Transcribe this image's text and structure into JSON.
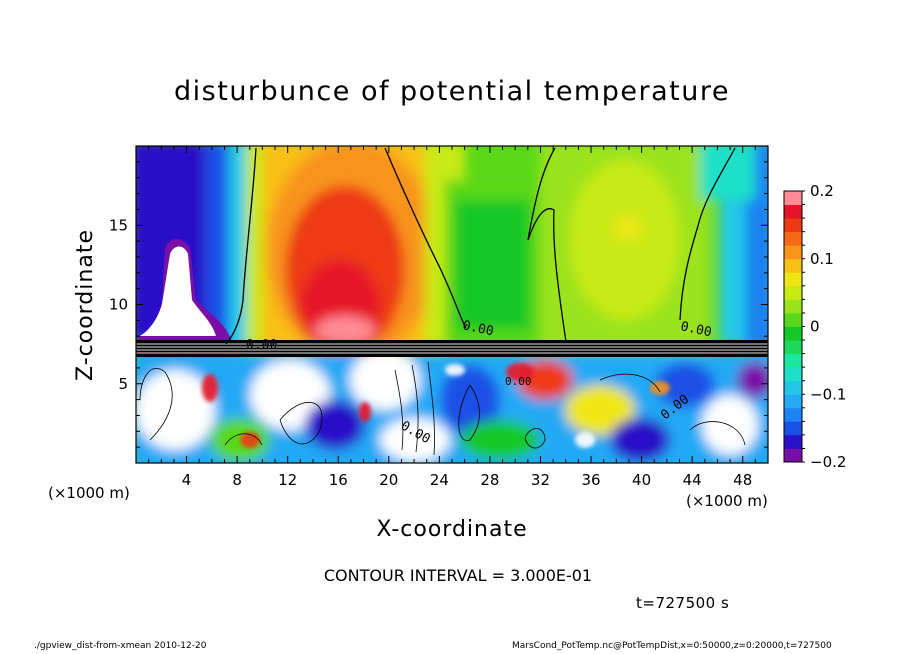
{
  "chart_data": {
    "type": "heatmap",
    "title": "disturbunce of potential temperature",
    "xlabel": "X-coordinate",
    "ylabel": "Z-coordinate",
    "x_unit_left": "(×1000 m)",
    "x_unit_right": "(×1000 m)",
    "xlim": [
      0,
      50
    ],
    "ylim": [
      0,
      20
    ],
    "xticks": [
      4,
      8,
      12,
      16,
      20,
      24,
      28,
      32,
      36,
      40,
      44,
      48
    ],
    "yticks": [
      5,
      10,
      15
    ],
    "colorbar": {
      "range": [
        -0.2,
        0.2
      ],
      "tick_labels": [
        "0.2",
        "0.1",
        "0",
        "−0.1",
        "−0.2"
      ],
      "tick_values": [
        0.2,
        0.1,
        0,
        -0.1,
        -0.2
      ],
      "levels": [
        -0.2,
        -0.18,
        -0.16,
        -0.14,
        -0.12,
        -0.1,
        -0.08,
        -0.06,
        -0.04,
        -0.02,
        0,
        0.02,
        0.04,
        0.06,
        0.08,
        0.1,
        0.12,
        0.14,
        0.16,
        0.18,
        0.2
      ],
      "colors": [
        "#7a0fa8",
        "#2b10c8",
        "#1a4fe6",
        "#1f82f2",
        "#23a9f5",
        "#23c8e8",
        "#1ee0c8",
        "#18e8a0",
        "#1ed85c",
        "#14c828",
        "#58d81a",
        "#9be31a",
        "#c8ea14",
        "#f0e614",
        "#f8c012",
        "#f8941a",
        "#f46a14",
        "#ee3a14",
        "#e61428",
        "#ff8c96"
      ]
    },
    "contour_labels": [
      "0.00",
      "0.00",
      "0.00",
      "0.00",
      "0.00",
      "0.00"
    ],
    "contour_interval_text": "CONTOUR INTERVAL = 3.000E-01"
  },
  "annotations": {
    "time": "t=727500 s",
    "footer_left": "./gpview_dist-from-xmean   2010-12-20",
    "footer_right": "MarsCond_PotTemp.nc@PotTempDist,x=0:50000,z=0:20000,t=727500"
  }
}
